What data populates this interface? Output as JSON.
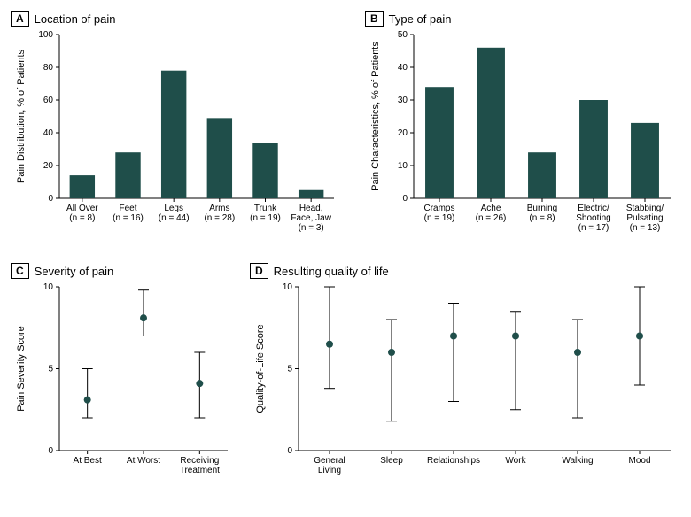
{
  "colors": {
    "bar": "#1f4e4a",
    "marker": "#1f4e4a",
    "axis": "#000000",
    "bg": "#ffffff",
    "text": "#000000"
  },
  "fontsize": {
    "title": 13,
    "axis_label": 11,
    "tick": 10
  },
  "panelA": {
    "letter": "A",
    "title": "Location of pain",
    "type": "bar",
    "ylabel": "Pain Distribution, % of Patients",
    "ylim": [
      0,
      100
    ],
    "ytick_step": 20,
    "bar_width": 0.55,
    "categories": [
      {
        "label": "All Over",
        "sub": "(n = 8)",
        "value": 14
      },
      {
        "label": "Feet",
        "sub": "(n = 16)",
        "value": 28
      },
      {
        "label": "Legs",
        "sub": "(n = 44)",
        "value": 78
      },
      {
        "label": "Arms",
        "sub": "(n = 28)",
        "value": 49
      },
      {
        "label": "Trunk",
        "sub": "(n = 19)",
        "value": 34
      },
      {
        "label": "Head,",
        "sub": "(n = 3)",
        "value": 5,
        "label2": "Face, Jaw"
      }
    ]
  },
  "panelB": {
    "letter": "B",
    "title": "Type of pain",
    "type": "bar",
    "ylabel": "Pain Characteristics, % of Patients",
    "ylim": [
      0,
      50
    ],
    "ytick_step": 10,
    "bar_width": 0.55,
    "categories": [
      {
        "label": "Cramps",
        "sub": "(n = 19)",
        "value": 34
      },
      {
        "label": "Ache",
        "sub": "(n = 26)",
        "value": 46
      },
      {
        "label": "Burning",
        "sub": "(n = 8)",
        "value": 14
      },
      {
        "label": "Electric/",
        "label2": "Shooting",
        "sub": "(n = 17)",
        "value": 30
      },
      {
        "label": "Stabbing/",
        "label2": "Pulsating",
        "sub": "(n = 13)",
        "value": 23
      }
    ]
  },
  "panelC": {
    "letter": "C",
    "title": "Severity of pain",
    "type": "errorbar",
    "ylabel": "Pain Severity Score",
    "ylim": [
      0,
      10
    ],
    "ytick_step": 5,
    "marker_size": 4,
    "cap_width": 6,
    "points": [
      {
        "label": "At Best",
        "y": 3.1,
        "lo": 2.0,
        "hi": 5.0
      },
      {
        "label": "At Worst",
        "y": 8.1,
        "lo": 7.0,
        "hi": 9.8
      },
      {
        "label": "Receiving",
        "label2": "Treatment",
        "y": 4.1,
        "lo": 2.0,
        "hi": 6.0
      }
    ]
  },
  "panelD": {
    "letter": "D",
    "title": "Resulting quality of life",
    "type": "errorbar",
    "ylabel": "Quality-of-Life Score",
    "ylim": [
      0,
      10
    ],
    "ytick_step": 5,
    "marker_size": 4,
    "cap_width": 6,
    "points": [
      {
        "label": "General",
        "label2": "Living",
        "y": 6.5,
        "lo": 3.8,
        "hi": 10.0
      },
      {
        "label": "Sleep",
        "y": 6.0,
        "lo": 1.8,
        "hi": 8.0
      },
      {
        "label": "Relationships",
        "y": 7.0,
        "lo": 3.0,
        "hi": 9.0
      },
      {
        "label": "Work",
        "y": 7.0,
        "lo": 2.5,
        "hi": 8.5
      },
      {
        "label": "Walking",
        "y": 6.0,
        "lo": 2.0,
        "hi": 8.0
      },
      {
        "label": "Mood",
        "y": 7.0,
        "lo": 4.0,
        "hi": 10.0
      }
    ]
  }
}
